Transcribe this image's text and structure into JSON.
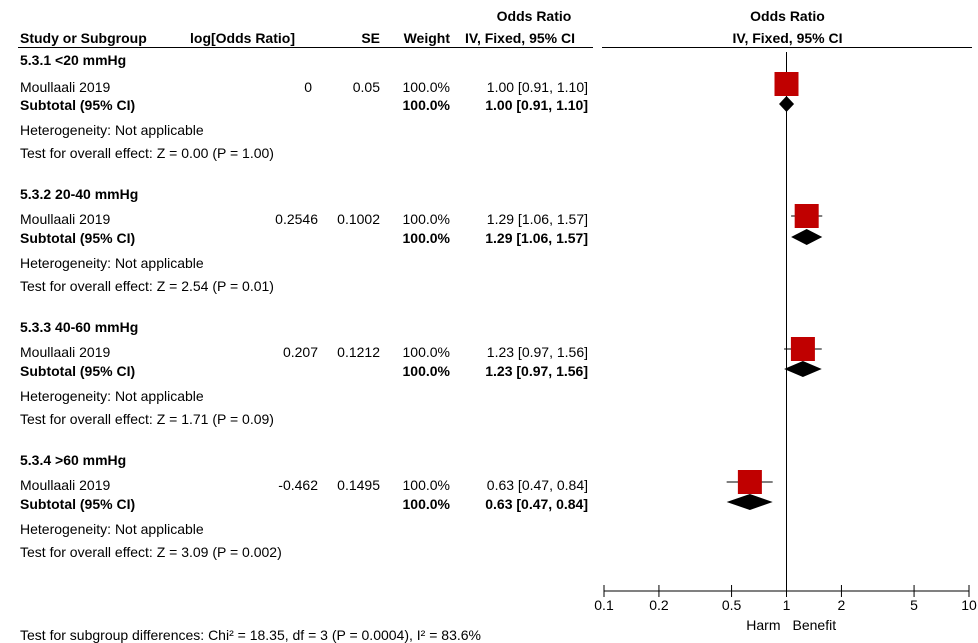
{
  "headers": {
    "study": "Study or Subgroup",
    "logor": "log[Odds Ratio]",
    "se": "SE",
    "weight": "Weight",
    "or_title": "Odds Ratio",
    "or_method": "IV, Fixed, 95% CI",
    "plot_title": "Odds Ratio",
    "plot_method": "IV, Fixed, 95% CI"
  },
  "subgroups": [
    {
      "title": "5.3.1 <20 mmHg",
      "study": "Moullaali 2019",
      "logor": "0",
      "se": "0.05",
      "weight": "100.0%",
      "ci": "1.00 [0.91, 1.10]",
      "subtotal_label": "Subtotal (95% CI)",
      "subtotal_weight": "100.0%",
      "subtotal_ci": "1.00 [0.91, 1.10]",
      "heterogeneity": "Heterogeneity: Not applicable",
      "overall": "Test for overall effect: Z = 0.00 (P = 1.00)"
    },
    {
      "title": "5.3.2 20-40 mmHg",
      "study": "Moullaali 2019",
      "logor": "0.2546",
      "se": "0.1002",
      "weight": "100.0%",
      "ci": "1.29 [1.06, 1.57]",
      "subtotal_label": "Subtotal (95% CI)",
      "subtotal_weight": "100.0%",
      "subtotal_ci": "1.29 [1.06, 1.57]",
      "heterogeneity": "Heterogeneity: Not applicable",
      "overall": "Test for overall effect: Z = 2.54 (P = 0.01)"
    },
    {
      "title": "5.3.3 40-60 mmHg",
      "study": "Moullaali 2019",
      "logor": "0.207",
      "se": "0.1212",
      "weight": "100.0%",
      "ci": "1.23 [0.97, 1.56]",
      "subtotal_label": "Subtotal (95% CI)",
      "subtotal_weight": "100.0%",
      "subtotal_ci": "1.23 [0.97, 1.56]",
      "heterogeneity": "Heterogeneity: Not applicable",
      "overall": "Test for overall effect: Z = 1.71 (P = 0.09)"
    },
    {
      "title": "5.3.4 >60 mmHg",
      "study": "Moullaali 2019",
      "logor": "-0.462",
      "se": "0.1495",
      "weight": "100.0%",
      "ci": "0.63 [0.47, 0.84]",
      "subtotal_label": "Subtotal (95% CI)",
      "subtotal_weight": "100.0%",
      "subtotal_ci": "0.63 [0.47, 0.84]",
      "heterogeneity": "Heterogeneity: Not applicable",
      "overall": "Test for overall effect: Z = 3.09 (P = 0.002)"
    }
  ],
  "footer": "Test for subgroup differences: Chi² = 18.35, df = 3 (P = 0.0004), I² = 83.6%",
  "chart_data": {
    "type": "forest",
    "x_scale": "log",
    "xlim": [
      0.1,
      10
    ],
    "ticks": [
      "0.1",
      "0.2",
      "0.5",
      "1",
      "2",
      "5",
      "10"
    ],
    "tick_values": [
      0.1,
      0.2,
      0.5,
      1,
      2,
      5,
      10
    ],
    "favours_left": "Harm",
    "favours_right": "Benefit",
    "colors": {
      "study_square": "#c00000",
      "diamond": "#000000"
    },
    "studies": [
      {
        "or": 1.0,
        "lo": 0.91,
        "hi": 1.1
      },
      {
        "or": 1.29,
        "lo": 1.06,
        "hi": 1.57
      },
      {
        "or": 1.23,
        "lo": 0.97,
        "hi": 1.56
      },
      {
        "or": 0.63,
        "lo": 0.47,
        "hi": 0.84
      }
    ],
    "subtotals": [
      {
        "or": 1.0,
        "lo": 0.91,
        "hi": 1.1
      },
      {
        "or": 1.29,
        "lo": 1.06,
        "hi": 1.57
      },
      {
        "or": 1.23,
        "lo": 0.97,
        "hi": 1.56
      },
      {
        "or": 0.63,
        "lo": 0.47,
        "hi": 0.84
      }
    ]
  }
}
